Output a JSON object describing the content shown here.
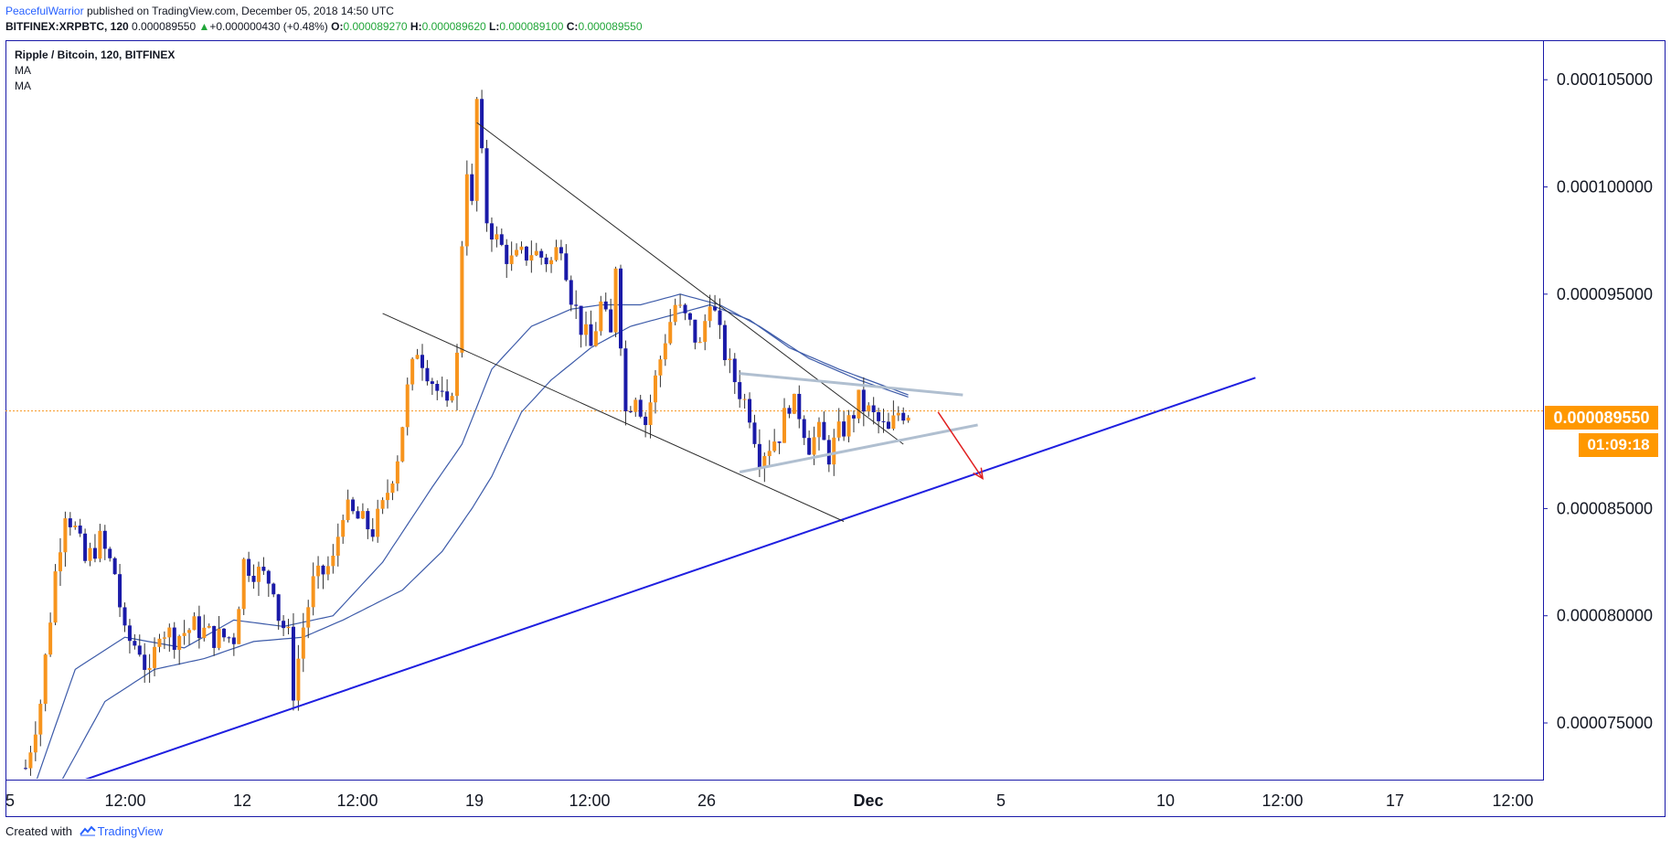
{
  "header": {
    "author": "PeacefulWarrior",
    "published": "published on TradingView.com, December 05, 2018 14:50 UTC",
    "symbol": "BITFINEX:XRPBTC, 120",
    "last": "0.000089550",
    "change_arrow": "▲",
    "change": "+0.000000430 (+0.48%)",
    "o_label": "O:",
    "o_value": "0.000089270",
    "h_label": "H:",
    "h_value": "0.000089620",
    "l_label": "L:",
    "l_value": "0.000089100",
    "c_label": "C:",
    "c_value": "0.000089550"
  },
  "legend": {
    "title": "Ripple / Bitcoin, 120, BITFINEX",
    "ma1": "MA",
    "ma2": "MA"
  },
  "price_badge": "0.000089550",
  "timer_badge": "01:09:18",
  "footer": {
    "created_with": "Created with",
    "brand": "TradingView",
    "logo_icon": "tradingview-logo-icon"
  },
  "colors": {
    "candle_up": "#f7941d",
    "candle_down": "#1a1aa8",
    "ma_line": "#3d5ba9",
    "trend_support": "#1f1fe0",
    "wedge_lines": "#2a2a2a",
    "triangle_lines": "#b0bfd0",
    "projection_arrow": "#e02020",
    "current_price_line": "#f7941d",
    "badge": "#ff9800"
  },
  "chart_data": {
    "type": "candlestick",
    "symbol": "Ripple / Bitcoin, 120, BITFINEX",
    "current_price": 8.955e-05,
    "ylim": [
      7.24e-05,
      0.0001068
    ],
    "y_ticks": [
      "0.000105000",
      "0.000100000",
      "0.000095000",
      "0.000085000",
      "0.000080000",
      "0.000075000"
    ],
    "x_ticks": [
      "5",
      "12:00",
      "12",
      "12:00",
      "19",
      "12:00",
      "26",
      "Dec",
      "5",
      "10",
      "12:00",
      "17",
      "12:00"
    ],
    "close_path": [
      [
        0.0,
        7.29e-05
      ],
      [
        1.5,
        7.6e-05
      ],
      [
        3.0,
        8.2e-05
      ],
      [
        4.0,
        8.5e-05
      ],
      [
        5.0,
        8.4e-05
      ],
      [
        6.0,
        8.25e-05
      ],
      [
        7.5,
        8.35e-05
      ],
      [
        9.0,
        8.2e-05
      ],
      [
        10.0,
        7.9e-05
      ],
      [
        11.5,
        7.85e-05
      ],
      [
        12.5,
        7.7e-05
      ],
      [
        13.5,
        7.95e-05
      ],
      [
        15.0,
        7.9e-05
      ],
      [
        17.0,
        7.95e-05
      ],
      [
        19.0,
        7.9e-05
      ],
      [
        21.0,
        7.9e-05
      ],
      [
        22.0,
        8.25e-05
      ],
      [
        23.5,
        8.2e-05
      ],
      [
        25.0,
        8.15e-05
      ],
      [
        25.5,
        8e-05
      ],
      [
        26.5,
        7.9e-05
      ],
      [
        27.0,
        7.65e-05
      ],
      [
        28.0,
        7.95e-05
      ],
      [
        29.0,
        8.15e-05
      ],
      [
        31.0,
        8.25e-05
      ],
      [
        32.0,
        8.5e-05
      ],
      [
        33.5,
        8.45e-05
      ],
      [
        35.0,
        8.4e-05
      ],
      [
        36.0,
        8.5e-05
      ],
      [
        37.5,
        8.75e-05
      ],
      [
        38.5,
        9.05e-05
      ],
      [
        39.5,
        9.25e-05
      ],
      [
        41.0,
        9.1e-05
      ],
      [
        42.5,
        8.95e-05
      ],
      [
        43.5,
        9.2e-05
      ],
      [
        44.0,
        9.75e-05
      ],
      [
        44.5,
        0.000101
      ],
      [
        45.0,
        9.9e-05
      ],
      [
        45.5,
        0.000104
      ],
      [
        46.5,
        9.85e-05
      ],
      [
        47.5,
        9.75e-05
      ],
      [
        49.0,
        9.65e-05
      ],
      [
        51.0,
        9.7e-05
      ],
      [
        53.0,
        9.65e-05
      ],
      [
        54.0,
        9.75e-05
      ],
      [
        55.0,
        9.5e-05
      ],
      [
        56.0,
        9.35e-05
      ],
      [
        57.0,
        9.25e-05
      ],
      [
        58.0,
        9.45e-05
      ],
      [
        59.0,
        9.3e-05
      ],
      [
        59.5,
        9.65e-05
      ],
      [
        60.5,
        8.95e-05
      ],
      [
        61.5,
        9.05e-05
      ],
      [
        62.5,
        8.9e-05
      ],
      [
        63.5,
        9.1e-05
      ],
      [
        64.5,
        9.3e-05
      ],
      [
        65.5,
        9.45e-05
      ],
      [
        67.0,
        9.35e-05
      ],
      [
        68.0,
        9.25e-05
      ],
      [
        69.0,
        9.5e-05
      ],
      [
        70.0,
        9.3e-05
      ],
      [
        71.0,
        9.15e-05
      ],
      [
        72.0,
        9.05e-05
      ],
      [
        73.0,
        8.95e-05
      ],
      [
        74.0,
        8.75e-05
      ],
      [
        75.0,
        8.8e-05
      ],
      [
        76.0,
        8.85e-05
      ],
      [
        77.0,
        9e-05
      ],
      [
        78.0,
        8.95e-05
      ],
      [
        79.0,
        8.8e-05
      ],
      [
        80.0,
        8.85e-05
      ],
      [
        81.0,
        8.75e-05
      ],
      [
        82.0,
        8.85e-05
      ],
      [
        83.0,
        8.9e-05
      ],
      [
        84.0,
        9e-05
      ],
      [
        85.0,
        8.95e-05
      ],
      [
        86.0,
        8.9e-05
      ],
      [
        87.0,
        8.85e-05
      ],
      [
        88.0,
        8.95e-05
      ],
      [
        89.0,
        8.955e-05
      ]
    ],
    "moving_averages": [
      {
        "name": "MA",
        "path": [
          [
            1.0,
            7.22e-05
          ],
          [
            5.0,
            7.75e-05
          ],
          [
            10.0,
            7.9e-05
          ],
          [
            16.0,
            7.85e-05
          ],
          [
            21.0,
            7.98e-05
          ],
          [
            26.0,
            7.95e-05
          ],
          [
            31.0,
            8e-05
          ],
          [
            36.0,
            8.25e-05
          ],
          [
            41.0,
            8.6e-05
          ],
          [
            44.0,
            8.8e-05
          ],
          [
            47.0,
            9.15e-05
          ],
          [
            51.0,
            9.35e-05
          ],
          [
            55.0,
            9.43e-05
          ],
          [
            58.0,
            9.45e-05
          ],
          [
            62.0,
            9.45e-05
          ],
          [
            66.0,
            9.5e-05
          ],
          [
            70.0,
            9.45e-05
          ],
          [
            74.0,
            9.35e-05
          ],
          [
            79.0,
            9.2e-05
          ],
          [
            84.0,
            9.1e-05
          ],
          [
            89.0,
            9.02e-05
          ]
        ]
      },
      {
        "name": "MA",
        "path": [
          [
            3.5,
            7.22e-05
          ],
          [
            8.0,
            7.6e-05
          ],
          [
            13.0,
            7.75e-05
          ],
          [
            18.0,
            7.8e-05
          ],
          [
            23.0,
            7.88e-05
          ],
          [
            28.0,
            7.9e-05
          ],
          [
            32.0,
            7.98e-05
          ],
          [
            38.0,
            8.12e-05
          ],
          [
            42.0,
            8.3e-05
          ],
          [
            45.0,
            8.5e-05
          ],
          [
            47.0,
            8.65e-05
          ],
          [
            50.0,
            8.95e-05
          ],
          [
            53.0,
            9.1e-05
          ],
          [
            57.0,
            9.25e-05
          ],
          [
            61.0,
            9.35e-05
          ],
          [
            65.0,
            9.4e-05
          ],
          [
            69.0,
            9.45e-05
          ],
          [
            73.0,
            9.38e-05
          ],
          [
            77.0,
            9.25e-05
          ],
          [
            82.0,
            9.15e-05
          ],
          [
            89.0,
            9.03e-05
          ]
        ]
      }
    ],
    "drawings": [
      {
        "name": "rising-support-line",
        "from": [
          5.0,
          7.22e-05
        ],
        "to": [
          124.0,
          9.11e-05
        ]
      },
      {
        "name": "wedge-upper-line",
        "from": [
          45.5,
          0.000103
        ],
        "to": [
          88.5,
          8.8e-05
        ]
      },
      {
        "name": "wedge-lower-line",
        "from": [
          36.0,
          9.41e-05
        ],
        "to": [
          82.5,
          8.44e-05
        ]
      },
      {
        "name": "triangle-upper-line",
        "from": [
          72.0,
          9.13e-05
        ],
        "to": [
          94.5,
          9.03e-05
        ]
      },
      {
        "name": "triangle-lower-line",
        "from": [
          72.0,
          8.67e-05
        ],
        "to": [
          96.0,
          8.89e-05
        ]
      },
      {
        "name": "projection-arrow",
        "from": [
          92.0,
          8.95e-05
        ],
        "to": [
          96.5,
          8.64e-05
        ]
      }
    ]
  }
}
